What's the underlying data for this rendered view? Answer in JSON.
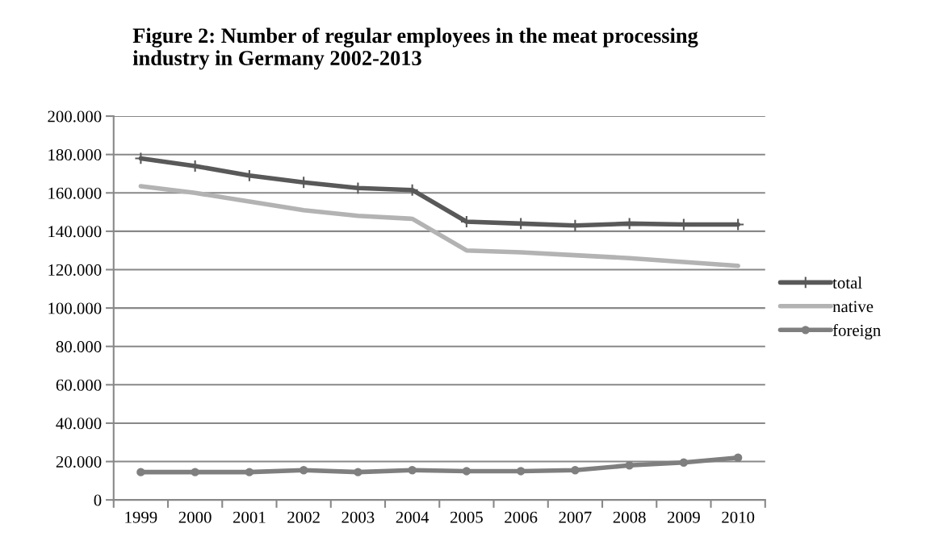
{
  "chart_data": {
    "type": "line",
    "title": "Figure 2: Number of regular employees in the meat processing\nindustry in Germany 2002-2013",
    "categories": [
      "1999",
      "2000",
      "2001",
      "2002",
      "2003",
      "2004",
      "2005",
      "2006",
      "2007",
      "2008",
      "2009",
      "2010"
    ],
    "series": [
      {
        "name": "total",
        "color": "#595959",
        "marker": "cross",
        "values": [
          178000,
          174000,
          169000,
          165500,
          162500,
          161500,
          145000,
          144000,
          143000,
          144000,
          143500,
          143500
        ]
      },
      {
        "name": "native",
        "color": "#b3b3b3",
        "marker": "none",
        "values": [
          163500,
          160000,
          155500,
          151000,
          148000,
          146500,
          130000,
          129000,
          127500,
          126000,
          124000,
          122000
        ]
      },
      {
        "name": "foreign",
        "color": "#7f7f7f",
        "marker": "circle",
        "values": [
          14500,
          14500,
          14500,
          15500,
          14500,
          15500,
          15000,
          15000,
          15500,
          18000,
          19500,
          22000
        ]
      }
    ],
    "ylim": [
      0,
      200000
    ],
    "yticks": [
      {
        "value": 0,
        "label": "0"
      },
      {
        "value": 20000,
        "label": "20.000"
      },
      {
        "value": 40000,
        "label": "40.000"
      },
      {
        "value": 60000,
        "label": "60.000"
      },
      {
        "value": 80000,
        "label": "80.000"
      },
      {
        "value": 100000,
        "label": "100.000"
      },
      {
        "value": 120000,
        "label": "120.000"
      },
      {
        "value": 140000,
        "label": "140.000"
      },
      {
        "value": 160000,
        "label": "160.000"
      },
      {
        "value": 180000,
        "label": "180.000"
      },
      {
        "value": 200000,
        "label": "200.000"
      }
    ],
    "grid": "y",
    "legend": "right",
    "line_style": "solid"
  }
}
